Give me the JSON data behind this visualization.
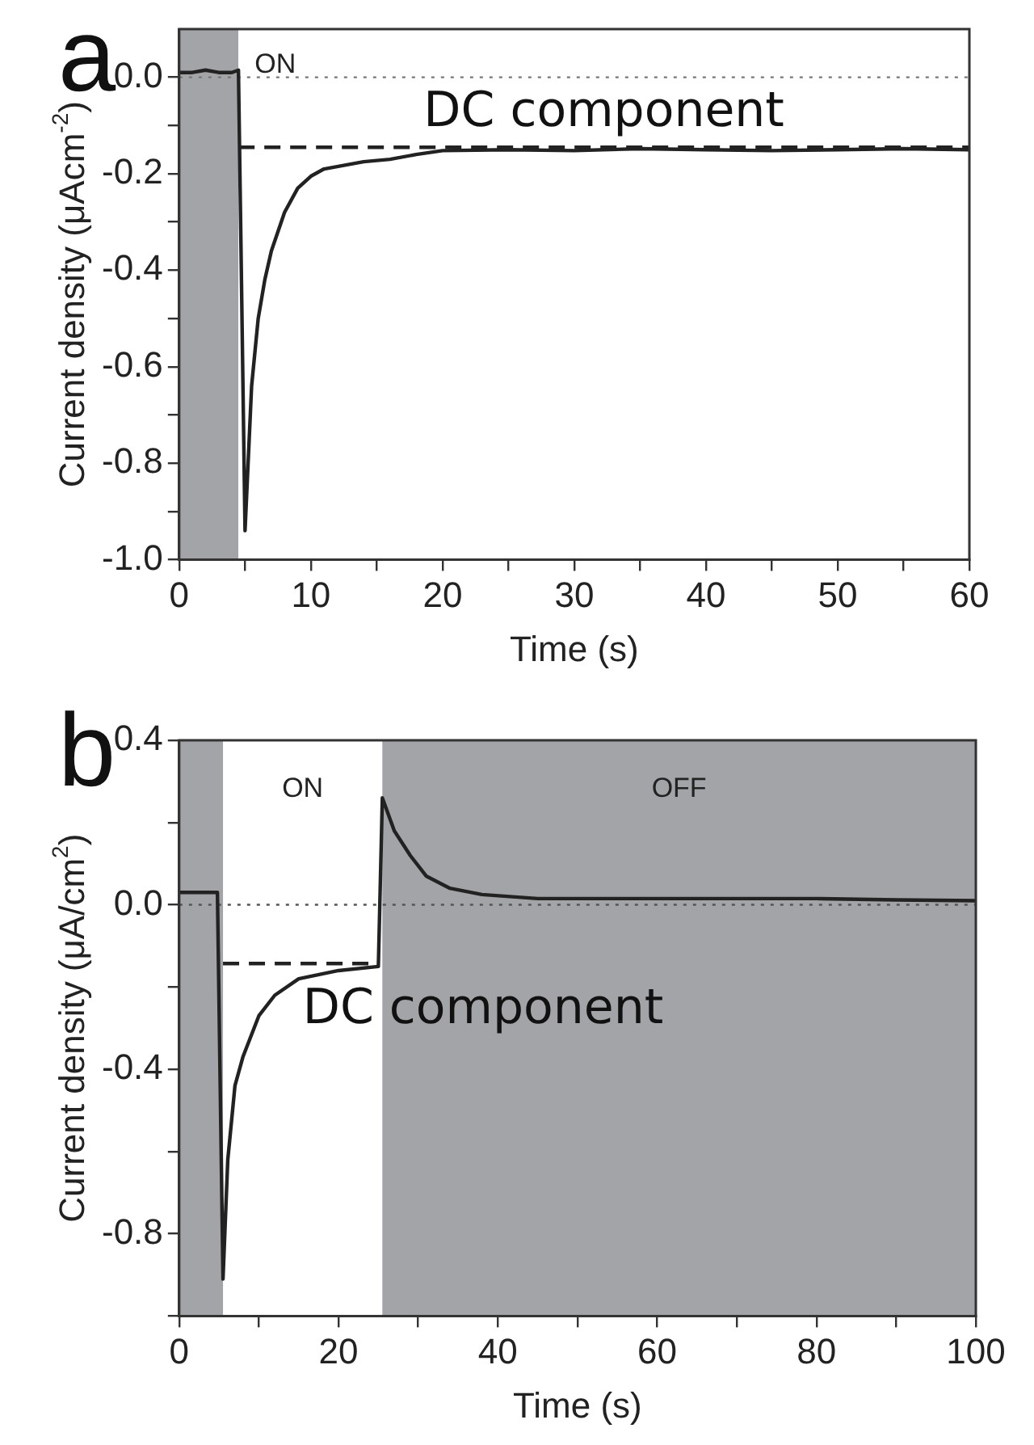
{
  "chart_data": [
    {
      "type": "line",
      "title": "a",
      "xlabel": "Time (s)",
      "ylabel": "Current density (μAcm$^{-2}$)",
      "xlim": [
        0,
        60
      ],
      "ylim": [
        -1.0,
        0.1
      ],
      "xticks": [
        0,
        {
          "value": 5,
          "label": null
        },
        10,
        {
          "value": 15,
          "label": null
        },
        20,
        {
          "value": 25,
          "label": null
        },
        30,
        {
          "value": 35,
          "label": null
        },
        40,
        {
          "value": 45,
          "label": null
        },
        50,
        {
          "value": 55,
          "label": null
        },
        60
      ],
      "yticks": [
        {
          "value": -1,
          "label": "-1.0"
        },
        {
          "value": -0.9,
          "label": null
        },
        {
          "value": -0.8,
          "label": "-0.8"
        },
        {
          "value": -0.7,
          "label": null
        },
        {
          "value": -0.6,
          "label": "-0.6"
        },
        {
          "value": -0.5,
          "label": null
        },
        {
          "value": -0.4,
          "label": "-0.4"
        },
        {
          "value": -0.3,
          "label": null
        },
        {
          "value": -0.2,
          "label": "-0.2"
        },
        {
          "value": -0.1,
          "label": null
        },
        {
          "value": 0,
          "label": "0.0"
        }
      ],
      "grid": false,
      "legend": false,
      "marker": "none",
      "series": [
        {
          "color": "#222222",
          "x": [
            0,
            1,
            2,
            3,
            4,
            4.5,
            5.0,
            5.5,
            6,
            6.5,
            7,
            8,
            9,
            10,
            11,
            12,
            14,
            16,
            18,
            20,
            25,
            30,
            35,
            40,
            45,
            50,
            55,
            60
          ],
          "values": [
            0.01,
            0.01,
            0.015,
            0.01,
            0.01,
            0.015,
            -0.94,
            -0.64,
            -0.5,
            -0.42,
            -0.36,
            -0.28,
            -0.23,
            -0.205,
            -0.19,
            -0.185,
            -0.175,
            -0.17,
            -0.16,
            -0.152,
            -0.15,
            -0.152,
            -0.148,
            -0.15,
            -0.152,
            -0.15,
            -0.148,
            -0.15
          ]
        },
        {
          "type": "line",
          "name": "DC component",
          "line_style": "dashed",
          "color": "#222222",
          "x": [
            4.5,
            60
          ],
          "values": [
            -0.145,
            -0.145
          ]
        }
      ],
      "bands": [
        {
          "axis": "x",
          "from": 0,
          "to": 4.5,
          "color": "#a2a4a7"
        },
        {
          "axis": "x",
          "from": 4.5,
          "to": 60,
          "color": "#ffffff",
          "label": "ON"
        }
      ],
      "ref_lines": [
        {
          "axis": "y",
          "value": 0,
          "line_style": "dotted",
          "color": "#777777"
        }
      ]
    },
    {
      "type": "line",
      "title": "b",
      "xlabel": "Time (s)",
      "ylabel": "Current density (μA/cm$^{2}$)",
      "xlim": [
        0,
        100
      ],
      "ylim": [
        -1.0,
        0.4
      ],
      "xticks": [
        0,
        {
          "value": 10,
          "label": null
        },
        20,
        {
          "value": 30,
          "label": null
        },
        40,
        {
          "value": 50,
          "label": null
        },
        60,
        {
          "value": 70,
          "label": null
        },
        80,
        {
          "value": 90,
          "label": null
        },
        100
      ],
      "yticks": [
        {
          "value": -1,
          "label": null
        },
        {
          "value": -0.8,
          "label": "-0.8"
        },
        {
          "value": -0.6,
          "label": null
        },
        {
          "value": -0.4,
          "label": "-0.4"
        },
        {
          "value": -0.2,
          "label": null
        },
        {
          "value": 0,
          "label": "0.0"
        },
        {
          "value": 0.2,
          "label": null
        },
        {
          "value": 0.4,
          "label": "0.4"
        }
      ],
      "grid": false,
      "legend": false,
      "marker": "none",
      "series": [
        {
          "color": "#222222",
          "x": [
            0,
            2,
            4,
            4.8,
            5.5,
            6.1,
            7,
            8,
            10,
            12,
            15,
            20,
            25,
            25.5,
            27,
            29,
            31,
            34,
            38,
            45,
            60,
            70,
            80,
            90,
            100
          ],
          "values": [
            0.03,
            0.03,
            0.03,
            0.03,
            -0.91,
            -0.62,
            -0.44,
            -0.37,
            -0.27,
            -0.22,
            -0.18,
            -0.16,
            -0.15,
            0.26,
            0.18,
            0.12,
            0.07,
            0.04,
            0.025,
            0.015,
            0.015,
            0.015,
            0.015,
            0.012,
            0.01
          ]
        },
        {
          "type": "line",
          "name": "DC component",
          "line_style": "dashed",
          "color": "#222222",
          "x": [
            5.5,
            25
          ],
          "values": [
            -0.143,
            -0.143
          ]
        }
      ],
      "bands": [
        {
          "axis": "x",
          "from": 0,
          "to": 5.5,
          "color": "#a2a4a7"
        },
        {
          "axis": "x",
          "from": 25.5,
          "to": 100,
          "color": "#a2a4a7",
          "label": "OFF"
        }
      ],
      "ref_lines": [
        {
          "axis": "y",
          "value": 0,
          "line_style": "dotted",
          "color": "#555555"
        }
      ],
      "annotations": [
        "ON"
      ]
    }
  ]
}
